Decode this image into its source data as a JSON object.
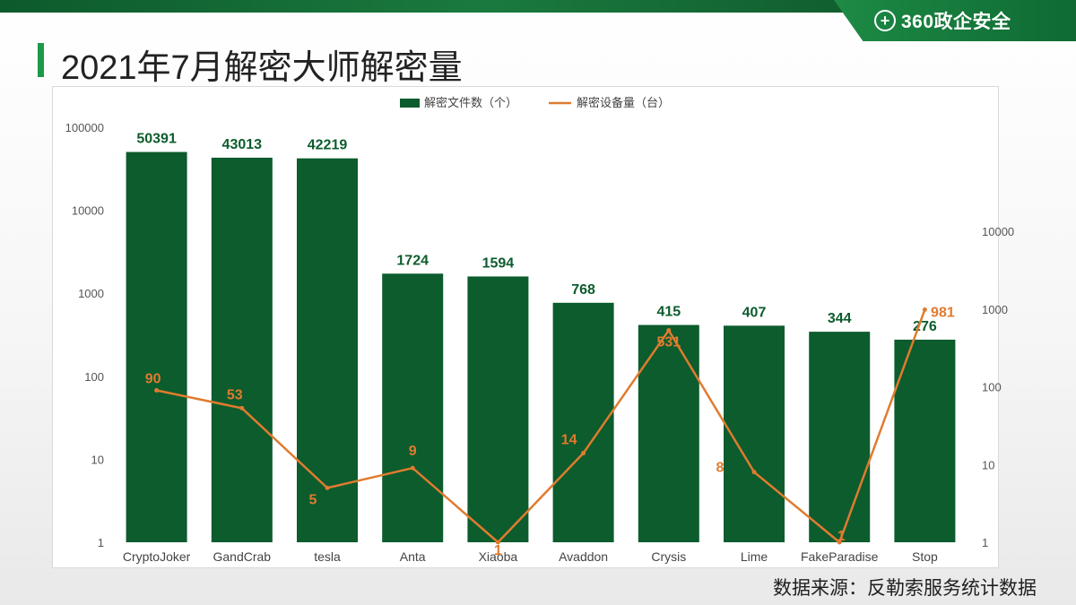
{
  "header": {
    "brand_icon": "plus-circle-icon",
    "brand_text": "360政企安全",
    "title": "2021年7月解密大师解密量"
  },
  "footer": {
    "source": "数据来源：反勒索服务统计数据"
  },
  "colors": {
    "bar": "#0c5c2d",
    "line": "#e07b2f",
    "bar_label": "#0c5c2d",
    "line_label": "#e07b2f"
  },
  "chart_data": {
    "type": "bar",
    "title": "",
    "categories": [
      "CryptoJoker",
      "GandCrab",
      "tesla",
      "Anta",
      "Xiaoba",
      "Avaddon",
      "Crysis",
      "Lime",
      "FakeParadise",
      "Stop"
    ],
    "series": [
      {
        "name": "解密文件数（个）",
        "type": "bar",
        "axis": "left",
        "values": [
          50391,
          43013,
          42219,
          1724,
          1594,
          768,
          415,
          407,
          344,
          276
        ]
      },
      {
        "name": "解密设备量（台）",
        "type": "line",
        "axis": "right",
        "values": [
          90,
          53,
          5,
          9,
          1,
          14,
          531,
          8,
          1,
          981
        ]
      }
    ],
    "y_left": {
      "scale": "log",
      "ticks": [
        "1",
        "10",
        "100",
        "1000",
        "10000",
        "100000"
      ],
      "range": [
        1,
        100000
      ]
    },
    "y_right": {
      "scale": "log",
      "ticks": [
        "1",
        "10",
        "100",
        "1000",
        "10000"
      ],
      "range": [
        1,
        10000
      ]
    },
    "legend": "top-center",
    "grid": false,
    "data_labels": true
  }
}
